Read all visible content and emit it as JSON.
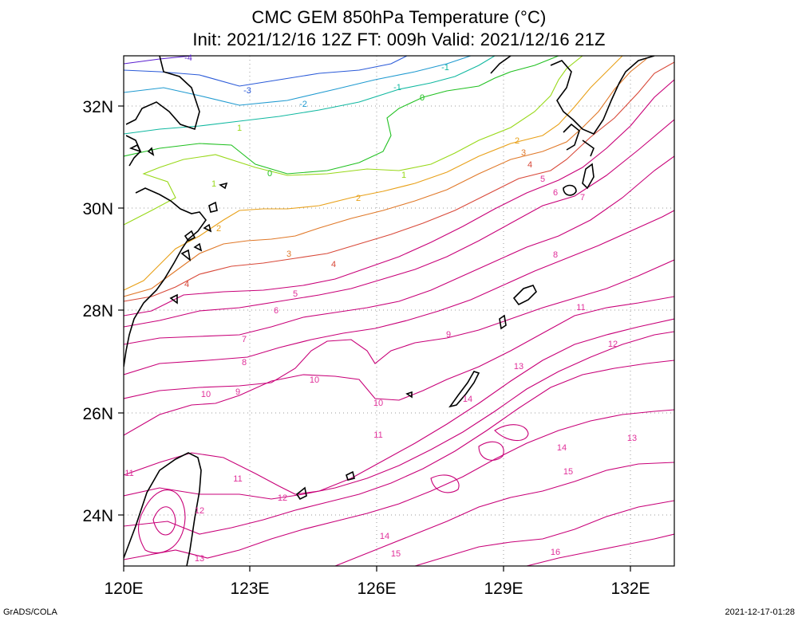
{
  "title": {
    "line1": "CMC GEM 850hPa Temperature (°C)",
    "line2": "Init: 2021/12/16 12Z  FT: 009h  Valid: 2021/12/16 21Z"
  },
  "axes": {
    "lon_ticks": [
      "120E",
      "123E",
      "126E",
      "129E",
      "132E"
    ],
    "lat_ticks": [
      "32N",
      "30N",
      "28N",
      "26N",
      "24N"
    ]
  },
  "footer": {
    "left": "GrADS/COLA",
    "right": "2021-12-17-01:28"
  },
  "contour_colors": {
    "-4": "#5a1fd0",
    "-3": "#2a5ad8",
    "-2": "#1f9ad0",
    "-1": "#10b8a0",
    "0": "#20c020",
    "1": "#98d818",
    "2": "#e8a018",
    "3": "#e07828",
    "4": "#d84838",
    "warm": "#c80078",
    "warm_label": "#e0309a"
  },
  "contour_labels": [
    {
      "text": "-4",
      "level": "-4"
    },
    {
      "text": "-3",
      "level": "-3"
    },
    {
      "text": "-2",
      "level": "-2"
    },
    {
      "text": "-1",
      "level": "-1"
    },
    {
      "text": "-1",
      "level": "-1"
    },
    {
      "text": "0",
      "level": "0"
    },
    {
      "text": "0",
      "level": "0"
    },
    {
      "text": "1",
      "level": "1"
    },
    {
      "text": "1",
      "level": "1"
    },
    {
      "text": "1",
      "level": "1"
    },
    {
      "text": "2",
      "level": "2"
    },
    {
      "text": "2",
      "level": "2"
    },
    {
      "text": "2",
      "level": "2"
    },
    {
      "text": "3",
      "level": "3"
    },
    {
      "text": "3",
      "level": "3"
    },
    {
      "text": "4",
      "level": "4"
    },
    {
      "text": "4",
      "level": "4"
    },
    {
      "text": "4",
      "level": "4"
    },
    {
      "text": "5",
      "level": "warm"
    },
    {
      "text": "5",
      "level": "warm"
    },
    {
      "text": "6",
      "level": "warm"
    },
    {
      "text": "6",
      "level": "warm"
    },
    {
      "text": "7",
      "level": "warm"
    },
    {
      "text": "7",
      "level": "warm"
    },
    {
      "text": "8",
      "level": "warm"
    },
    {
      "text": "8",
      "level": "warm"
    },
    {
      "text": "9",
      "level": "warm"
    },
    {
      "text": "9",
      "level": "warm"
    },
    {
      "text": "10",
      "level": "warm"
    },
    {
      "text": "10",
      "level": "warm"
    },
    {
      "text": "10",
      "level": "warm"
    },
    {
      "text": "11",
      "level": "warm"
    },
    {
      "text": "11",
      "level": "warm"
    },
    {
      "text": "11",
      "level": "warm"
    },
    {
      "text": "11",
      "level": "warm"
    },
    {
      "text": "12",
      "level": "warm"
    },
    {
      "text": "12",
      "level": "warm"
    },
    {
      "text": "12",
      "level": "warm"
    },
    {
      "text": "13",
      "level": "warm"
    },
    {
      "text": "13",
      "level": "warm"
    },
    {
      "text": "13",
      "level": "warm"
    },
    {
      "text": "14",
      "level": "warm"
    },
    {
      "text": "14",
      "level": "warm"
    },
    {
      "text": "14",
      "level": "warm"
    },
    {
      "text": "15",
      "level": "warm"
    },
    {
      "text": "15",
      "level": "warm"
    },
    {
      "text": "16",
      "level": "warm"
    }
  ]
}
